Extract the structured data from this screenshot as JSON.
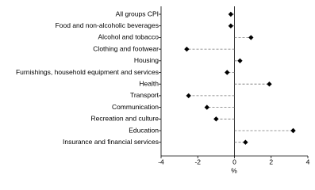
{
  "chart_data": {
    "type": "dot",
    "categories": [
      "All groups CPI",
      "Food and non-alcoholic beverages",
      "Alcohol and tobacco",
      "Clothing and footwear",
      "Housing",
      "Furnishings, household equipment and services",
      "Health",
      "Transport",
      "Communication",
      "Recreation and culture",
      "Education",
      "Insurance and financial services"
    ],
    "values": [
      -0.2,
      -0.2,
      0.9,
      -2.6,
      0.3,
      -0.4,
      1.9,
      -2.5,
      -1.5,
      -1.0,
      3.2,
      0.6
    ],
    "color": "#000000",
    "xlim": [
      -4,
      4
    ],
    "xticks": [
      -4,
      -2,
      0,
      2,
      4
    ],
    "xlabel": "%"
  }
}
